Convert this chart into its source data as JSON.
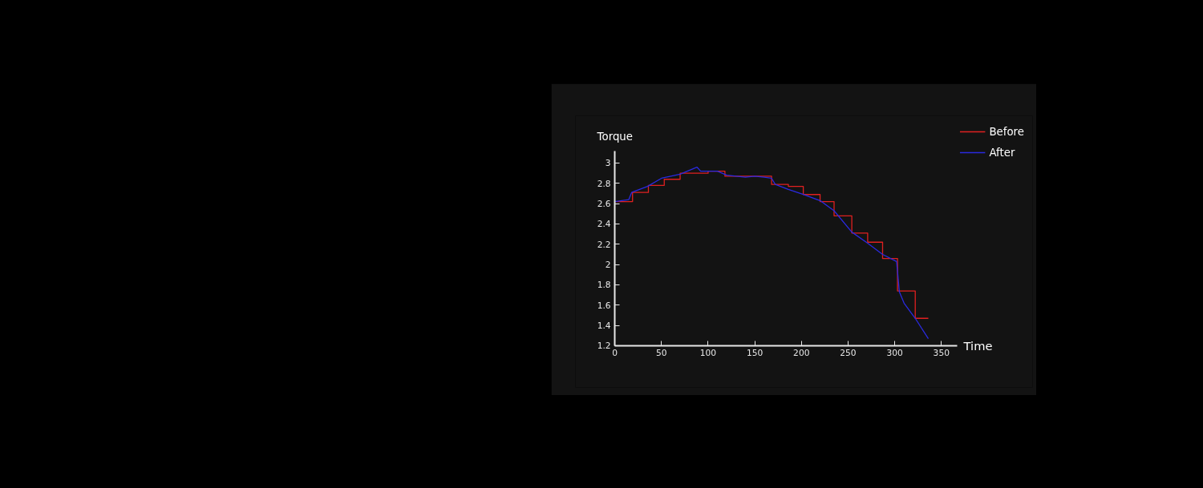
{
  "chart_data": {
    "type": "line",
    "xlabel": "Time",
    "ylabel": "Torque",
    "xlim": [
      0,
      367
    ],
    "ylim": [
      1.2,
      3.12
    ],
    "xticks": [
      0,
      50,
      100,
      150,
      200,
      250,
      300,
      350
    ],
    "yticks": [
      1.2,
      1.4,
      1.6,
      1.8,
      2,
      2.2,
      2.4,
      2.6,
      2.8,
      3
    ],
    "grid": false,
    "legend": "top right",
    "series": [
      {
        "name": "Before",
        "type": "step",
        "color": "#e02020",
        "x": [
          0,
          19,
          36,
          53,
          70,
          100,
          118,
          168,
          186,
          202,
          220,
          235,
          254,
          271,
          287,
          303,
          322,
          336
        ],
        "values": [
          2.62,
          2.71,
          2.78,
          2.84,
          2.9,
          2.92,
          2.87,
          2.79,
          2.77,
          2.69,
          2.62,
          2.48,
          2.31,
          2.22,
          2.06,
          1.74,
          1.47,
          1.47
        ]
      },
      {
        "name": "After",
        "color": "#2a2ae0",
        "x": [
          0,
          15,
          18,
          35,
          50,
          70,
          88,
          92,
          110,
          120,
          140,
          150,
          160,
          168,
          172,
          186,
          202,
          220,
          235,
          254,
          271,
          287,
          302,
          305,
          310,
          322,
          336
        ],
        "values": [
          2.62,
          2.64,
          2.71,
          2.77,
          2.85,
          2.89,
          2.96,
          2.92,
          2.92,
          2.88,
          2.86,
          2.87,
          2.86,
          2.85,
          2.79,
          2.74,
          2.69,
          2.63,
          2.53,
          2.32,
          2.21,
          2.1,
          2.03,
          1.73,
          1.62,
          1.47,
          1.27
        ]
      }
    ]
  }
}
